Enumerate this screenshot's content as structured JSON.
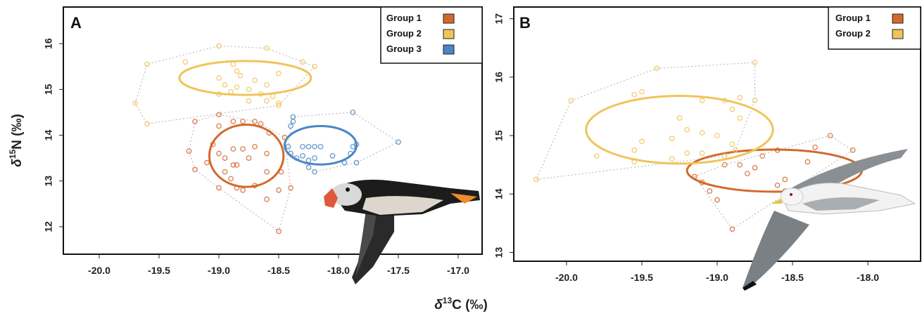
{
  "chart_data": [
    {
      "type": "scatter",
      "panel": "A",
      "xlabel": "δ13C (‰)",
      "ylabel": "δ15N (‰)",
      "xlim": [
        -20.3,
        -16.8
      ],
      "ylim": [
        11.4,
        16.8
      ],
      "xticks": [
        -20.0,
        -19.5,
        -19.0,
        -18.5,
        -18.0,
        -17.5,
        -17.0
      ],
      "xtick_labels": [
        "-20.0",
        "-19.5",
        "-19.0",
        "-18.5",
        "-18.0",
        "-17.5",
        "-17.0"
      ],
      "yticks": [
        12,
        13,
        14,
        15,
        16
      ],
      "ytick_labels": [
        "12",
        "13",
        "14",
        "15",
        "16"
      ],
      "legend_position": "top-right",
      "series": [
        {
          "name": "Group 1",
          "color": "#d2692c",
          "points": [
            [
              -19.2,
              14.3
            ],
            [
              -19.0,
              14.45
            ],
            [
              -19.0,
              14.2
            ],
            [
              -18.88,
              14.3
            ],
            [
              -18.8,
              14.3
            ],
            [
              -18.7,
              14.3
            ],
            [
              -18.65,
              14.25
            ],
            [
              -18.58,
              14.05
            ],
            [
              -18.45,
              13.95
            ],
            [
              -19.05,
              13.8
            ],
            [
              -19.0,
              13.6
            ],
            [
              -18.88,
              13.7
            ],
            [
              -18.8,
              13.7
            ],
            [
              -18.7,
              13.75
            ],
            [
              -18.6,
              13.6
            ],
            [
              -18.75,
              13.5
            ],
            [
              -19.25,
              13.65
            ],
            [
              -19.1,
              13.4
            ],
            [
              -18.95,
              13.5
            ],
            [
              -18.88,
              13.35
            ],
            [
              -18.85,
              13.35
            ],
            [
              -18.95,
              13.2
            ],
            [
              -19.2,
              13.25
            ],
            [
              -18.6,
              13.2
            ],
            [
              -18.48,
              13.2
            ],
            [
              -18.9,
              13.05
            ],
            [
              -18.85,
              12.85
            ],
            [
              -18.8,
              12.8
            ],
            [
              -18.7,
              12.9
            ],
            [
              -19.0,
              12.85
            ],
            [
              -18.6,
              12.6
            ],
            [
              -18.5,
              12.8
            ],
            [
              -18.4,
              12.85
            ],
            [
              -18.5,
              11.9
            ]
          ],
          "ellipse": {
            "cx": -18.77,
            "cy": 13.55,
            "rx": 0.31,
            "ry": 0.68
          }
        },
        {
          "name": "Group 2",
          "color": "#f0c45a",
          "points": [
            [
              -19.0,
              15.95
            ],
            [
              -18.6,
              15.9
            ],
            [
              -19.28,
              15.6
            ],
            [
              -19.6,
              15.55
            ],
            [
              -18.3,
              15.6
            ],
            [
              -18.2,
              15.5
            ],
            [
              -18.88,
              15.55
            ],
            [
              -19.0,
              15.25
            ],
            [
              -18.85,
              15.4
            ],
            [
              -18.82,
              15.3
            ],
            [
              -18.7,
              15.2
            ],
            [
              -18.6,
              15.1
            ],
            [
              -18.5,
              15.35
            ],
            [
              -18.95,
              15.1
            ],
            [
              -18.85,
              15.05
            ],
            [
              -18.75,
              15.0
            ],
            [
              -18.9,
              14.95
            ],
            [
              -19.0,
              14.9
            ],
            [
              -18.65,
              14.9
            ],
            [
              -18.55,
              14.85
            ],
            [
              -18.75,
              14.75
            ],
            [
              -18.6,
              14.75
            ],
            [
              -18.5,
              14.7
            ],
            [
              -18.5,
              14.65
            ],
            [
              -19.7,
              14.7
            ],
            [
              -19.6,
              14.25
            ]
          ],
          "ellipse": {
            "cx": -18.78,
            "cy": 15.25,
            "rx": 0.55,
            "ry": 0.37
          }
        },
        {
          "name": "Group 3",
          "color": "#4a86c5",
          "points": [
            [
              -18.38,
              14.4
            ],
            [
              -18.38,
              14.3
            ],
            [
              -18.4,
              14.2
            ],
            [
              -17.88,
              14.5
            ],
            [
              -17.5,
              13.85
            ],
            [
              -18.42,
              13.75
            ],
            [
              -18.3,
              13.75
            ],
            [
              -18.25,
              13.75
            ],
            [
              -18.2,
              13.75
            ],
            [
              -18.15,
              13.75
            ],
            [
              -17.85,
              13.8
            ],
            [
              -17.88,
              13.75
            ],
            [
              -17.9,
              13.6
            ],
            [
              -18.4,
              13.6
            ],
            [
              -18.35,
              13.5
            ],
            [
              -18.3,
              13.55
            ],
            [
              -18.25,
              13.45
            ],
            [
              -18.2,
              13.5
            ],
            [
              -18.05,
              13.55
            ],
            [
              -17.95,
              13.4
            ],
            [
              -18.25,
              13.3
            ],
            [
              -18.2,
              13.2
            ],
            [
              -17.85,
              13.4
            ]
          ],
          "ellipse": {
            "cx": -18.15,
            "cy": 13.78,
            "rx": 0.3,
            "ry": 0.42
          }
        }
      ]
    },
    {
      "type": "scatter",
      "panel": "B",
      "xlabel": "δ13C (‰)",
      "ylabel": "",
      "xlim": [
        -20.35,
        -17.65
      ],
      "ylim": [
        12.85,
        17.2
      ],
      "xticks": [
        -20.0,
        -19.5,
        -19.0,
        -18.5,
        -18.0
      ],
      "xtick_labels": [
        "-20.0",
        "-19.5",
        "-19.0",
        "-18.5",
        "-18.0"
      ],
      "yticks": [
        13,
        14,
        15,
        16,
        17
      ],
      "ytick_labels": [
        "13",
        "14",
        "15",
        "16",
        "17"
      ],
      "legend_position": "top-right",
      "series": [
        {
          "name": "Group 1",
          "color": "#d2692c",
          "points": [
            [
              -18.25,
              15.0
            ],
            [
              -18.1,
              14.75
            ],
            [
              -18.35,
              14.8
            ],
            [
              -18.4,
              14.55
            ],
            [
              -18.6,
              14.75
            ],
            [
              -18.7,
              14.65
            ],
            [
              -18.85,
              14.5
            ],
            [
              -18.95,
              14.5
            ],
            [
              -18.75,
              14.45
            ],
            [
              -18.8,
              14.35
            ],
            [
              -19.05,
              14.05
            ],
            [
              -19.15,
              14.3
            ],
            [
              -19.1,
              14.2
            ],
            [
              -18.6,
              14.15
            ],
            [
              -18.55,
              14.05
            ],
            [
              -19.0,
              13.9
            ],
            [
              -18.9,
              13.4
            ],
            [
              -18.55,
              14.25
            ]
          ],
          "ellipse": {
            "cx": -18.62,
            "cy": 14.4,
            "rx": 0.58,
            "ry": 0.36
          }
        },
        {
          "name": "Group 2",
          "color": "#f0c45a",
          "points": [
            [
              -19.4,
              16.15
            ],
            [
              -18.75,
              16.25
            ],
            [
              -19.97,
              15.6
            ],
            [
              -19.55,
              15.7
            ],
            [
              -19.5,
              15.75
            ],
            [
              -19.1,
              15.6
            ],
            [
              -18.95,
              15.6
            ],
            [
              -18.85,
              15.65
            ],
            [
              -18.75,
              15.6
            ],
            [
              -18.9,
              15.45
            ],
            [
              -19.25,
              15.3
            ],
            [
              -18.85,
              15.3
            ],
            [
              -19.2,
              15.1
            ],
            [
              -19.1,
              15.05
            ],
            [
              -19.0,
              15.0
            ],
            [
              -19.3,
              14.95
            ],
            [
              -18.9,
              14.85
            ],
            [
              -19.5,
              14.9
            ],
            [
              -19.55,
              14.75
            ],
            [
              -19.2,
              14.7
            ],
            [
              -19.1,
              14.7
            ],
            [
              -18.95,
              14.65
            ],
            [
              -19.8,
              14.65
            ],
            [
              -19.3,
              14.6
            ],
            [
              -19.55,
              14.55
            ],
            [
              -18.88,
              14.75
            ],
            [
              -20.2,
              14.25
            ]
          ],
          "ellipse": {
            "cx": -19.25,
            "cy": 15.1,
            "rx": 0.62,
            "ry": 0.58
          }
        }
      ]
    }
  ],
  "panels": {
    "A": {
      "label": "A"
    },
    "B": {
      "label": "B"
    }
  },
  "legend_items": [
    "Group 1",
    "Group 2",
    "Group 3"
  ],
  "axis_titles": {
    "x": "δ13C (‰)",
    "y": "δ15N (‰)"
  },
  "colors": {
    "group1": "#d2692c",
    "group2": "#f0c45a",
    "group3": "#4a86c5",
    "hull": "#bdbdbd"
  },
  "illustrations": {
    "panel_a": "atlantic-puffin-illustration",
    "panel_b": "kittiwake-gull-illustration"
  }
}
